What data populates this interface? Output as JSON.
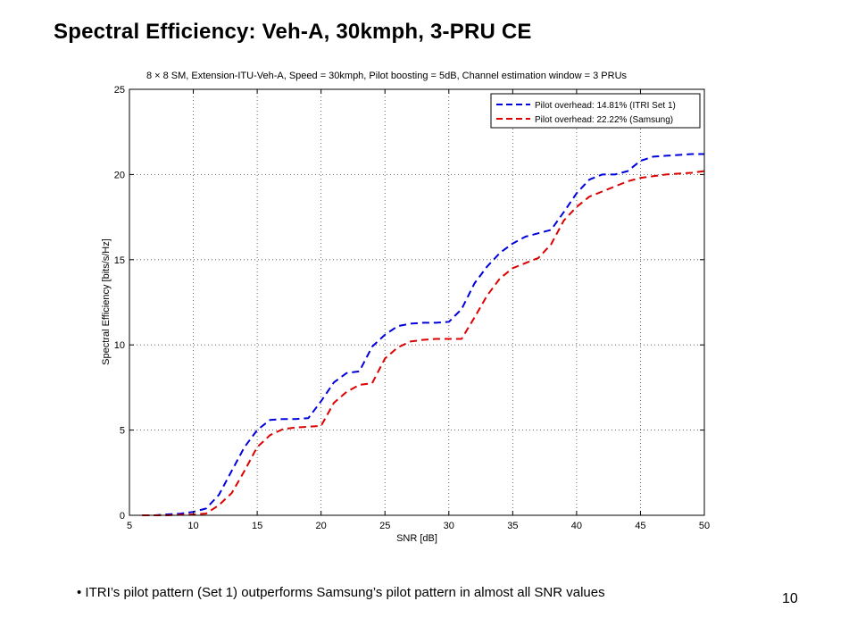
{
  "slide": {
    "title": "Spectral Efficiency: Veh-A, 30kmph, 3-PRU CE",
    "bullet": "• ITRI’s pilot pattern (Set 1) outperforms Samsung’s pilot pattern in almost all SNR values",
    "page_number": "10"
  },
  "chart_data": {
    "type": "line",
    "title": "8 × 8  SM, Extension-ITU-Veh-A, Speed = 30kmph, Pilot boosting = 5dB, Channel estimation window = 3 PRUs",
    "xlabel": "SNR [dB]",
    "ylabel": "Spectral Efficiency [bits/s/Hz]",
    "xlim": [
      5,
      50
    ],
    "ylim": [
      0,
      25
    ],
    "xticks": [
      5,
      10,
      15,
      20,
      25,
      30,
      35,
      40,
      45,
      50
    ],
    "yticks": [
      0,
      5,
      10,
      15,
      20,
      25
    ],
    "grid": true,
    "legend_position": "top-right",
    "series": [
      {
        "name": "Pilot overhead: 14.81% (ITRI Set 1)",
        "color": "#0000dd",
        "style": "dashed",
        "x": [
          6,
          7,
          8,
          9,
          10,
          11,
          12,
          13,
          14,
          15,
          16,
          17,
          18,
          19,
          20,
          21,
          22,
          23,
          24,
          25,
          26,
          27,
          28,
          29,
          30,
          31,
          32,
          33,
          34,
          35,
          36,
          37,
          38,
          39,
          40,
          41,
          42,
          43,
          44,
          45,
          46,
          47,
          48,
          49,
          50
        ],
        "y": [
          0,
          0,
          0.05,
          0.1,
          0.2,
          0.4,
          1.2,
          2.6,
          4.0,
          5.0,
          5.6,
          5.65,
          5.65,
          5.7,
          6.7,
          7.8,
          8.35,
          8.45,
          9.9,
          10.6,
          11.1,
          11.25,
          11.3,
          11.3,
          11.35,
          12.1,
          13.6,
          14.6,
          15.4,
          15.95,
          16.35,
          16.55,
          16.75,
          17.8,
          18.9,
          19.7,
          20.0,
          20.0,
          20.2,
          20.8,
          21.05,
          21.1,
          21.15,
          21.2,
          21.2
        ]
      },
      {
        "name": "Pilot overhead: 22.22% (Samsung)",
        "color": "#dd0000",
        "style": "dashed",
        "x": [
          6,
          7,
          8,
          9,
          10,
          11,
          12,
          13,
          14,
          15,
          16,
          17,
          18,
          19,
          20,
          21,
          22,
          23,
          24,
          25,
          26,
          27,
          28,
          29,
          30,
          31,
          32,
          33,
          34,
          35,
          36,
          37,
          38,
          39,
          40,
          41,
          42,
          43,
          44,
          45,
          46,
          47,
          48,
          49,
          50
        ],
        "y": [
          0,
          0,
          0,
          0.03,
          0.05,
          0.1,
          0.6,
          1.3,
          2.6,
          4.0,
          4.7,
          5.05,
          5.15,
          5.2,
          5.25,
          6.6,
          7.25,
          7.65,
          7.75,
          9.2,
          9.85,
          10.2,
          10.3,
          10.35,
          10.35,
          10.35,
          11.6,
          12.9,
          13.9,
          14.5,
          14.8,
          15.1,
          15.9,
          17.3,
          18.1,
          18.7,
          19.0,
          19.3,
          19.6,
          19.8,
          19.9,
          20.0,
          20.05,
          20.1,
          20.2
        ]
      }
    ]
  }
}
